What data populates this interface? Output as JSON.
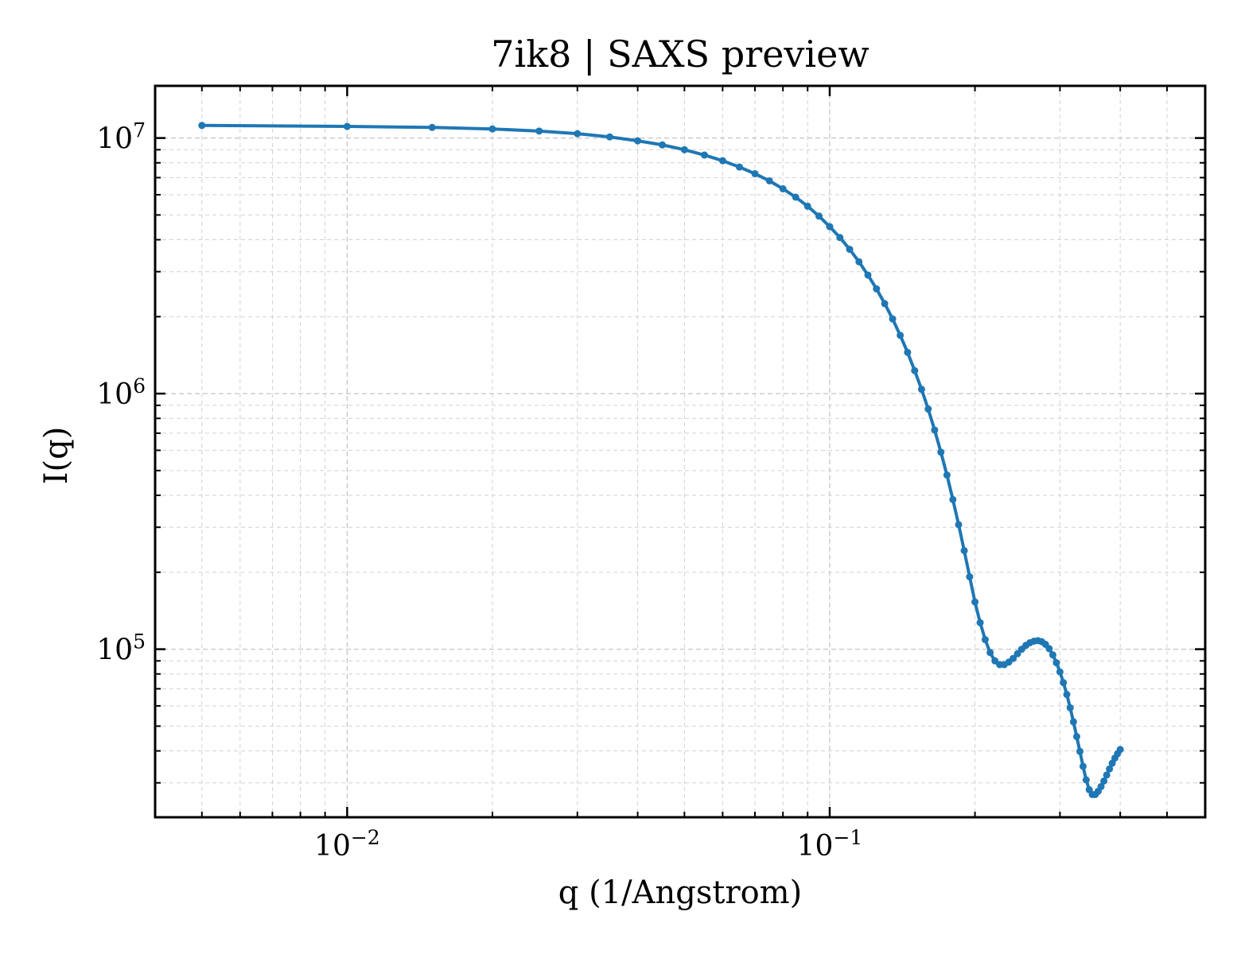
{
  "chart_data": {
    "type": "line",
    "title": "7ik8 | SAXS preview",
    "xlabel": "q (1/Angstrom)",
    "ylabel": "I(q)",
    "xscale": "log",
    "yscale": "log",
    "xlim": [
      0.004,
      0.6
    ],
    "ylim": [
      22000,
      16000000
    ],
    "grid": true,
    "grid_minor": true,
    "line_color": "#1f77b4",
    "marker": "circle",
    "x_ticks": [
      {
        "value": 0.01,
        "base": "10",
        "exponent": "−2"
      },
      {
        "value": 0.1,
        "base": "10",
        "exponent": "−1"
      }
    ],
    "y_ticks": [
      {
        "value": 100000,
        "base": "10",
        "exponent": "5"
      },
      {
        "value": 1000000,
        "base": "10",
        "exponent": "6"
      },
      {
        "value": 10000000,
        "base": "10",
        "exponent": "7"
      }
    ],
    "series": [
      {
        "points": [
          [
            0.005,
            11200000
          ],
          [
            0.01,
            11100000
          ],
          [
            0.015,
            11000000
          ],
          [
            0.02,
            10850000
          ],
          [
            0.025,
            10650000
          ],
          [
            0.03,
            10400000
          ],
          [
            0.035,
            10100000
          ],
          [
            0.04,
            9750000
          ],
          [
            0.045,
            9400000
          ],
          [
            0.05,
            9000000
          ],
          [
            0.055,
            8580000
          ],
          [
            0.06,
            8150000
          ],
          [
            0.065,
            7700000
          ],
          [
            0.07,
            7250000
          ],
          [
            0.075,
            6800000
          ],
          [
            0.08,
            6330000
          ],
          [
            0.085,
            5870000
          ],
          [
            0.09,
            5410000
          ],
          [
            0.095,
            4950000
          ],
          [
            0.1,
            4500000
          ],
          [
            0.105,
            4080000
          ],
          [
            0.11,
            3670000
          ],
          [
            0.115,
            3280000
          ],
          [
            0.12,
            2910000
          ],
          [
            0.125,
            2570000
          ],
          [
            0.13,
            2250000
          ],
          [
            0.135,
            1960000
          ],
          [
            0.14,
            1690000
          ],
          [
            0.145,
            1450000
          ],
          [
            0.15,
            1230000
          ],
          [
            0.155,
            1040000
          ],
          [
            0.16,
            870000
          ],
          [
            0.165,
            720000
          ],
          [
            0.17,
            590000
          ],
          [
            0.175,
            480000
          ],
          [
            0.18,
            385000
          ],
          [
            0.185,
            307000
          ],
          [
            0.19,
            243000
          ],
          [
            0.195,
            192000
          ],
          [
            0.2,
            153000
          ],
          [
            0.205,
            127000
          ],
          [
            0.21,
            109000
          ],
          [
            0.215,
            97000
          ],
          [
            0.22,
            90000
          ],
          [
            0.225,
            87000
          ],
          [
            0.23,
            87000
          ],
          [
            0.235,
            89000
          ],
          [
            0.24,
            92000
          ],
          [
            0.245,
            96000
          ],
          [
            0.25,
            100000
          ],
          [
            0.255,
            103500
          ],
          [
            0.26,
            106000
          ],
          [
            0.265,
            107500
          ],
          [
            0.27,
            108000
          ],
          [
            0.275,
            107000
          ],
          [
            0.28,
            104500
          ],
          [
            0.285,
            100500
          ],
          [
            0.29,
            95000
          ],
          [
            0.295,
            88500
          ],
          [
            0.3,
            81500
          ],
          [
            0.305,
            74000
          ],
          [
            0.31,
            66500
          ],
          [
            0.315,
            59000
          ],
          [
            0.32,
            52000
          ],
          [
            0.325,
            45500
          ],
          [
            0.33,
            39800
          ],
          [
            0.335,
            34800
          ],
          [
            0.34,
            30800
          ],
          [
            0.345,
            28200
          ],
          [
            0.35,
            27000
          ],
          [
            0.355,
            27000
          ],
          [
            0.36,
            27800
          ],
          [
            0.365,
            29000
          ],
          [
            0.37,
            30500
          ],
          [
            0.375,
            32200
          ],
          [
            0.38,
            34000
          ],
          [
            0.385,
            35800
          ],
          [
            0.39,
            37500
          ],
          [
            0.395,
            39000
          ],
          [
            0.4,
            40500
          ]
        ]
      }
    ]
  }
}
